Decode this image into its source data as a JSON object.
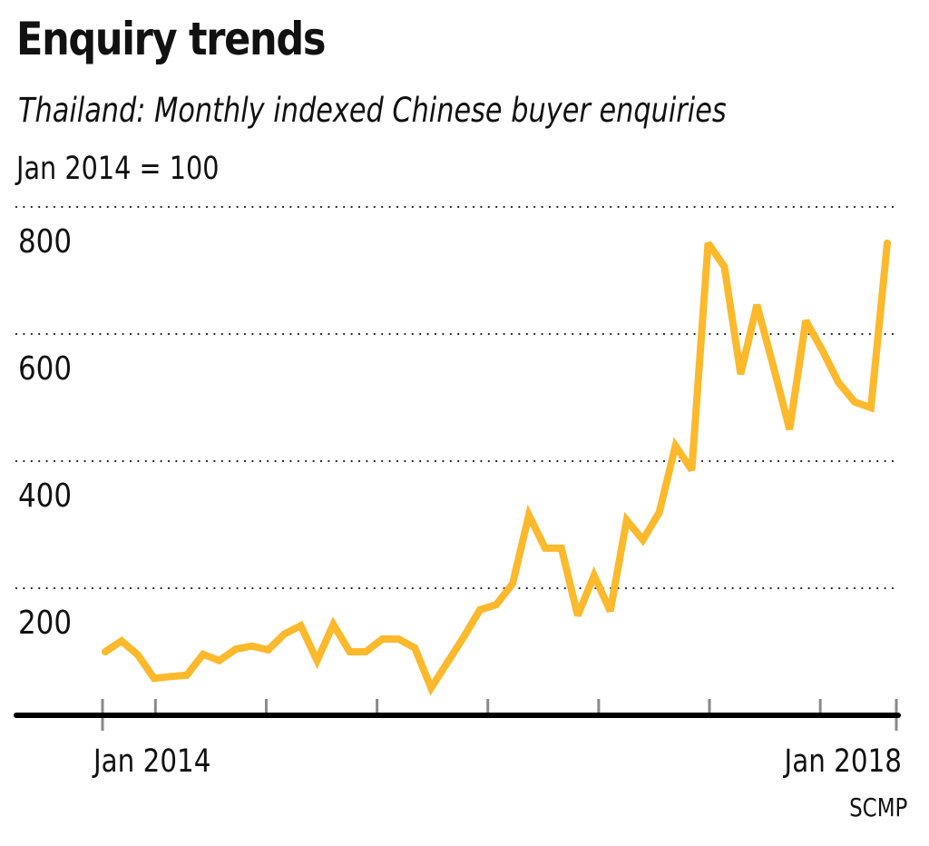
{
  "header": {
    "title": "Enquiry trends",
    "subtitle": "Thailand: Monthly indexed Chinese buyer enquiries",
    "unit_note": "Jan 2014 = 100"
  },
  "source": "SCMP",
  "colors": {
    "line": "#FBB92B",
    "axis": "#000000",
    "grid": "#222222",
    "tick": "#8a8a8a",
    "text": "#111111"
  },
  "chart_data": {
    "type": "line",
    "title": "Enquiry trends",
    "subtitle": "Thailand: Monthly indexed Chinese buyer enquiries",
    "ylabel": "Jan 2014 = 100",
    "xlabel": "",
    "x_start": "Jan 2014",
    "x_end": "Jan 2018",
    "x_frequency": "monthly",
    "xlim_months": [
      0,
      48
    ],
    "ylim": [
      0,
      800
    ],
    "grid": true,
    "grid_style": "dotted",
    "legend": "none",
    "yticks": [
      200,
      400,
      600,
      800
    ],
    "ytick_labels": [
      "200",
      "400",
      "600",
      "800"
    ],
    "xtick_labels": [
      {
        "month_index": 0,
        "label": "Jan 2014"
      },
      {
        "month_index": 48,
        "label": "Jan 2018"
      }
    ],
    "minor_xtick_months": [
      3.2,
      9.9,
      16.6,
      23.3,
      30.0,
      36.7,
      43.4
    ],
    "series": [
      {
        "name": "Indexed Chinese buyer enquiries",
        "values": [
          100,
          117,
          95,
          58,
          61,
          63,
          96,
          86,
          104,
          109,
          103,
          128,
          141,
          86,
          143,
          100,
          100,
          120,
          120,
          106,
          43,
          83,
          123,
          166,
          174,
          207,
          315,
          263,
          263,
          157,
          220,
          164,
          307,
          276,
          319,
          424,
          386,
          743,
          706,
          537,
          646,
          550,
          450,
          621,
          575,
          524,
          493,
          484,
          743
        ]
      }
    ]
  }
}
